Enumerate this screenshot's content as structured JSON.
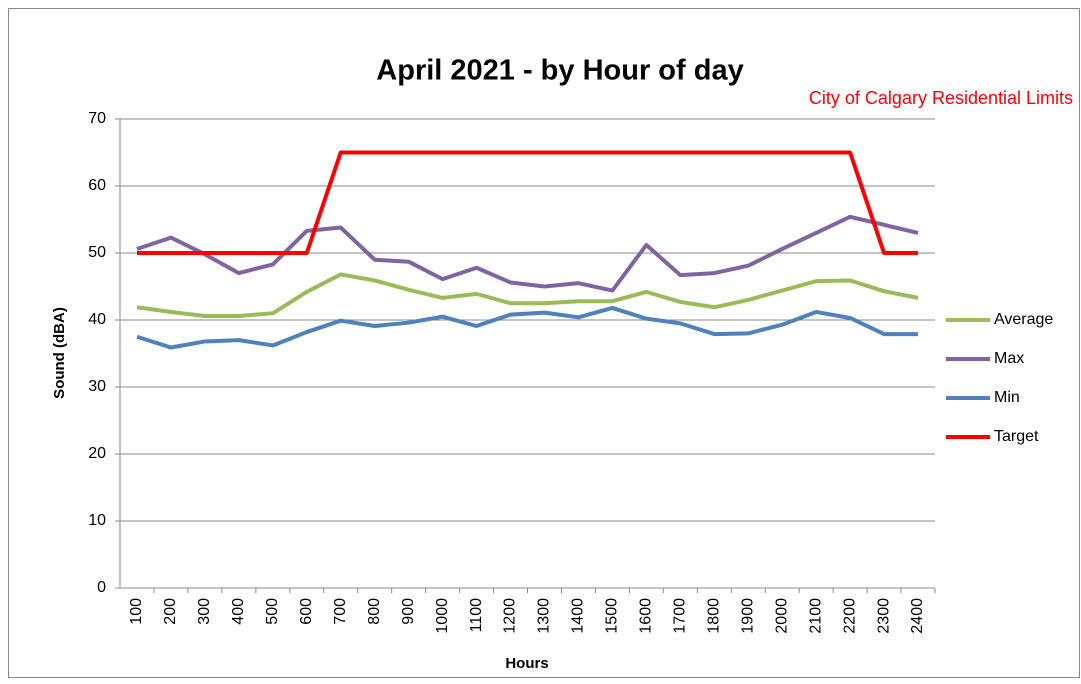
{
  "chart_data": {
    "type": "line",
    "title": "April 2021  - by Hour of day",
    "annotation": "City of Calgary Residential Limits",
    "x_label": "Hours",
    "y_label": "Sound (dBA)",
    "categories": [
      "100",
      "200",
      "300",
      "400",
      "500",
      "600",
      "700",
      "800",
      "900",
      "1000",
      "1100",
      "1200",
      "1300",
      "1400",
      "1500",
      "1600",
      "1700",
      "1800",
      "1900",
      "2000",
      "2100",
      "2200",
      "2300",
      "2400"
    ],
    "series": [
      {
        "name": "Average",
        "color": "#9bbb59",
        "values": [
          41.9,
          41.2,
          40.6,
          40.6,
          41.0,
          44.2,
          46.8,
          45.9,
          44.5,
          43.3,
          43.9,
          42.5,
          42.5,
          42.8,
          42.8,
          44.2,
          42.7,
          41.9,
          43.0,
          44.4,
          45.8,
          45.9,
          44.3,
          43.3
        ]
      },
      {
        "name": "Max",
        "color": "#8064a2",
        "values": [
          50.6,
          52.3,
          49.8,
          47.0,
          48.3,
          53.3,
          53.8,
          49.0,
          48.7,
          46.1,
          47.8,
          45.6,
          45.0,
          45.5,
          44.4,
          51.2,
          46.7,
          47.0,
          48.1,
          50.6,
          53.0,
          55.4,
          54.2,
          53.0
        ]
      },
      {
        "name": "Min",
        "color": "#4f81bd",
        "values": [
          37.5,
          35.9,
          36.8,
          37.0,
          36.2,
          38.2,
          39.9,
          39.1,
          39.6,
          40.5,
          39.1,
          40.8,
          41.1,
          40.4,
          41.8,
          40.2,
          39.5,
          37.9,
          38.0,
          39.3,
          41.2,
          40.3,
          37.9,
          37.9
        ]
      },
      {
        "name": "Target",
        "color": "#ff0000",
        "values": [
          50,
          50,
          50,
          50,
          50,
          50,
          65,
          65,
          65,
          65,
          65,
          65,
          65,
          65,
          65,
          65,
          65,
          65,
          65,
          65,
          65,
          65,
          50,
          50
        ]
      }
    ],
    "ylim": [
      0,
      70
    ],
    "yticks": [
      0,
      10,
      20,
      30,
      40,
      50,
      60,
      70
    ],
    "grid": true,
    "legend": "right"
  }
}
